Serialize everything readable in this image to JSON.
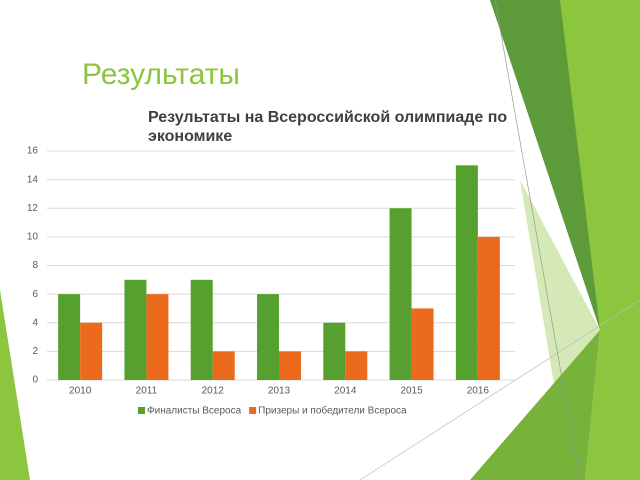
{
  "slide_title": "Результаты",
  "chart_data": {
    "type": "bar",
    "title": "Результаты на Всероссийской олимпиаде по экономике",
    "categories": [
      "2010",
      "2011",
      "2012",
      "2013",
      "2014",
      "2015",
      "2016"
    ],
    "series": [
      {
        "name": "Финалисты Всероса",
        "color": "#55a02e",
        "values": [
          6,
          7,
          7,
          6,
          4,
          12,
          15
        ]
      },
      {
        "name": "Призеры и победители Всероса",
        "color": "#ec6a1c",
        "values": [
          4,
          6,
          2,
          2,
          2,
          5,
          10
        ]
      }
    ],
    "ylim": [
      0,
      16
    ],
    "yticks": [
      0,
      2,
      4,
      6,
      8,
      10,
      12,
      14,
      16
    ],
    "grid": true,
    "legend": "bottom"
  }
}
